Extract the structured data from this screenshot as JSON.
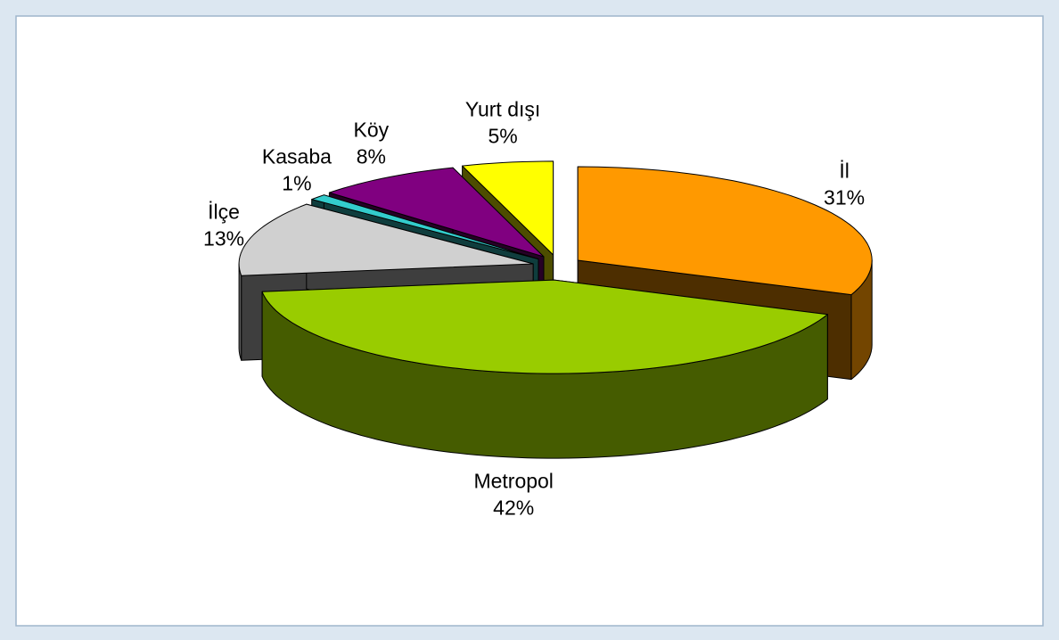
{
  "chart_data": {
    "type": "pie3d",
    "categories": [
      "İl",
      "Metropol",
      "İlçe",
      "Kasaba",
      "Köy",
      "Yurt dışı"
    ],
    "values": [
      31,
      42,
      13,
      1,
      8,
      5
    ],
    "value_labels": [
      "31%",
      "42%",
      "13%",
      "1%",
      "8%",
      "5%"
    ],
    "colors": [
      "#ff9900",
      "#99cc00",
      "#d0d0d0",
      "#33cccc",
      "#800080",
      "#ffff00"
    ]
  }
}
